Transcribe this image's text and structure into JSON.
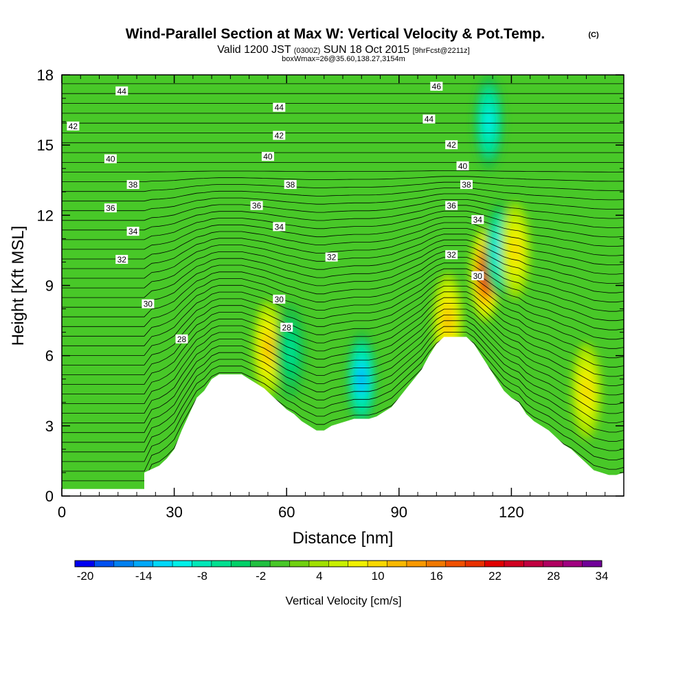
{
  "title": {
    "main": "Wind-Parallel Section at Max W: Vertical Velocity & Pot.Temp.",
    "copyright": "(C)",
    "valid_prefix": "Valid 1200 JST",
    "valid_utc": "(0300Z)",
    "valid_date": "SUN 18 Oct 2015",
    "forecast": "[9hrFcst@2211z]",
    "box_info": "boxWmax=26@35.60,138.27,3154m"
  },
  "chart_data": {
    "type": "heatmap",
    "xlabel": "Distance [nm]",
    "ylabel": "Height [Kft MSL]",
    "xlim": [
      0,
      150
    ],
    "ylim": [
      0,
      18
    ],
    "x_ticks": [
      "0",
      "30",
      "60",
      "90",
      "120"
    ],
    "y_ticks": [
      "0",
      "3",
      "6",
      "9",
      "12",
      "15",
      "18"
    ],
    "x_tick_values": [
      0,
      30,
      60,
      90,
      120
    ],
    "y_tick_values": [
      0,
      3,
      6,
      9,
      12,
      15,
      18
    ],
    "colorbar": {
      "label": "Vertical Velocity [cm/s]",
      "tick_labels": [
        "-20",
        "-14",
        "-8",
        "-2",
        "4",
        "10",
        "16",
        "22",
        "28",
        "34"
      ],
      "min": -20,
      "max": 34,
      "step": 2,
      "colors": [
        "#0000f0",
        "#0050f0",
        "#0080f0",
        "#00a8f8",
        "#00d8f8",
        "#00f0e8",
        "#00e8b8",
        "#00e090",
        "#00d068",
        "#20c040",
        "#48c828",
        "#70d010",
        "#a0e000",
        "#c8f000",
        "#f0f000",
        "#f8d800",
        "#f8b800",
        "#f89800",
        "#f07800",
        "#f05000",
        "#e83000",
        "#e00000",
        "#d00020",
        "#c00040",
        "#b00060",
        "#a00080",
        "#700098"
      ]
    },
    "terrain_profile": {
      "x": [
        0,
        22,
        22,
        26,
        28,
        30,
        32,
        34,
        36,
        38,
        40,
        42,
        44,
        46,
        48,
        50,
        52,
        54,
        56,
        58,
        60,
        62,
        64,
        66,
        68,
        70,
        72,
        74,
        76,
        78,
        80,
        82,
        84,
        86,
        88,
        90,
        92,
        94,
        96,
        98,
        100,
        102,
        104,
        106,
        108,
        110,
        112,
        114,
        116,
        118,
        120,
        122,
        124,
        126,
        128,
        130,
        132,
        134,
        136,
        138,
        140,
        142,
        144,
        146,
        148,
        150
      ],
      "height": [
        0.3,
        0.3,
        1.0,
        1.3,
        1.6,
        2.0,
        2.8,
        3.5,
        4.2,
        4.5,
        5.0,
        5.2,
        5.2,
        5.2,
        5.2,
        5.0,
        4.8,
        4.6,
        4.3,
        4.0,
        3.7,
        3.5,
        3.2,
        3.0,
        2.8,
        2.8,
        3.0,
        3.1,
        3.2,
        3.3,
        3.3,
        3.3,
        3.4,
        3.6,
        3.8,
        4.2,
        4.6,
        5.0,
        5.4,
        6.0,
        6.5,
        6.8,
        6.8,
        6.8,
        6.8,
        6.5,
        6.0,
        5.5,
        5.0,
        4.5,
        4.2,
        4.0,
        3.5,
        3.2,
        3.0,
        2.8,
        2.5,
        2.2,
        2.0,
        1.7,
        1.4,
        1.1,
        1.0,
        0.9,
        0.9,
        1.0
      ]
    },
    "vertical_velocity_features": [
      {
        "x": 55,
        "h": 6.3,
        "w": 12,
        "shape": "updraft"
      },
      {
        "x": 61,
        "h": 6.2,
        "w": -6,
        "shape": "downdraft"
      },
      {
        "x": 80,
        "h": 5.0,
        "w": -13,
        "shape": "downdraft"
      },
      {
        "x": 103,
        "h": 7.5,
        "w": 12,
        "shape": "updraft"
      },
      {
        "x": 113,
        "h": 9.5,
        "w": 26,
        "shape": "updraft"
      },
      {
        "x": 117,
        "h": 10.5,
        "w": -12,
        "shape": "downdraft"
      },
      {
        "x": 114,
        "h": 16.0,
        "w": -10,
        "shape": "downdraft"
      },
      {
        "x": 140,
        "h": 4.5,
        "w": 10,
        "shape": "updraft"
      },
      {
        "x": 121,
        "h": 10.5,
        "w": 10,
        "shape": "updraft"
      }
    ],
    "theta_contour_labels": [
      {
        "text": "44",
        "x": 16,
        "y": 17.3
      },
      {
        "text": "42",
        "x": 3,
        "y": 15.8
      },
      {
        "text": "40",
        "x": 13,
        "y": 14.4
      },
      {
        "text": "38",
        "x": 19,
        "y": 13.3
      },
      {
        "text": "36",
        "x": 13,
        "y": 12.3
      },
      {
        "text": "34",
        "x": 19,
        "y": 11.3
      },
      {
        "text": "32",
        "x": 16,
        "y": 10.1
      },
      {
        "text": "30",
        "x": 23,
        "y": 8.2
      },
      {
        "text": "28",
        "x": 32,
        "y": 6.7
      },
      {
        "text": "44",
        "x": 58,
        "y": 16.6
      },
      {
        "text": "42",
        "x": 58,
        "y": 15.4
      },
      {
        "text": "40",
        "x": 55,
        "y": 14.5
      },
      {
        "text": "38",
        "x": 61,
        "y": 13.3
      },
      {
        "text": "36",
        "x": 52,
        "y": 12.4
      },
      {
        "text": "34",
        "x": 58,
        "y": 11.5
      },
      {
        "text": "32",
        "x": 72,
        "y": 10.2
      },
      {
        "text": "30",
        "x": 58,
        "y": 8.4
      },
      {
        "text": "28",
        "x": 60,
        "y": 7.2
      },
      {
        "text": "46",
        "x": 100,
        "y": 17.5
      },
      {
        "text": "44",
        "x": 98,
        "y": 16.1
      },
      {
        "text": "42",
        "x": 104,
        "y": 15.0
      },
      {
        "text": "40",
        "x": 107,
        "y": 14.1
      },
      {
        "text": "38",
        "x": 108,
        "y": 13.3
      },
      {
        "text": "36",
        "x": 104,
        "y": 12.4
      },
      {
        "text": "34",
        "x": 111,
        "y": 11.8
      },
      {
        "text": "32",
        "x": 104,
        "y": 10.3
      },
      {
        "text": "30",
        "x": 111,
        "y": 9.4
      }
    ]
  }
}
